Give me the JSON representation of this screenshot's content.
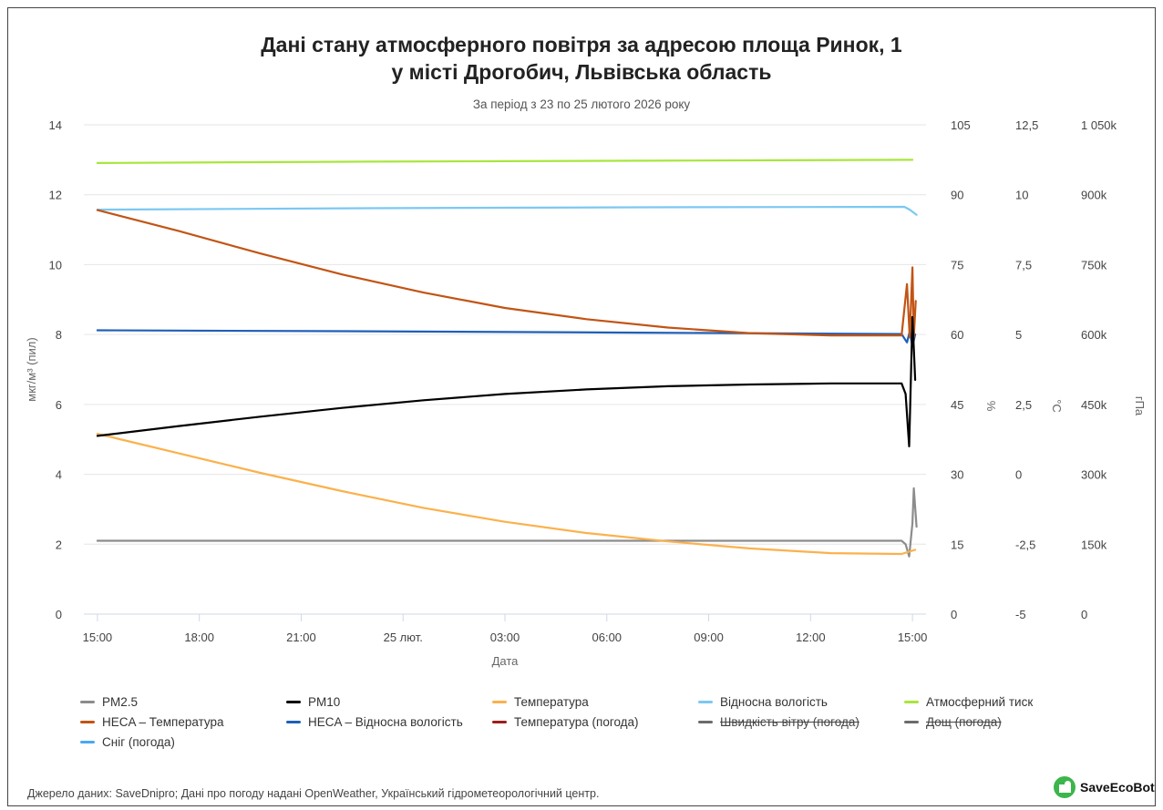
{
  "title_line1": "Дані стану атмосферного повітря за адресою площа Ринок, 1",
  "title_line2": "у місті Дрогобич, Львівська область",
  "subtitle": "За період з 23 по 25 лютого 2026 року",
  "source_text": "Джерело даних: SaveDnipro; Дані про погоду надані OpenWeather, Український гідрометеорологічний центр.",
  "brand": {
    "name": "SaveEcoBot",
    "logo_icon": "saveecobot-logo-icon",
    "color": "#3cb54a"
  },
  "chart_data": {
    "type": "line",
    "xlabel": "Дата",
    "x_tick_labels": [
      "15:00",
      "18:00",
      "21:00",
      "25 лют.",
      "03:00",
      "06:00",
      "09:00",
      "12:00",
      "15:00"
    ],
    "x_range_hours": [
      -0.5,
      30.5
    ],
    "grid": true,
    "legend_placement": "bottom",
    "axes": {
      "pm": {
        "label": "мкг/м³ (пил)",
        "ticks": [
          "0",
          "2",
          "4",
          "6",
          "8",
          "10",
          "12",
          "14"
        ],
        "range": [
          0,
          14
        ]
      },
      "humidity": {
        "label": "%",
        "ticks": [
          "0",
          "15",
          "30",
          "45",
          "60",
          "75",
          "90",
          "105"
        ],
        "range": [
          0,
          105
        ]
      },
      "temperature": {
        "label": "°C",
        "ticks": [
          "-5",
          "-2,5",
          "0",
          "2,5",
          "5",
          "7,5",
          "10",
          "12,5"
        ],
        "range": [
          -5,
          12.5
        ]
      },
      "pressure": {
        "label": "гПа",
        "ticks": [
          "0",
          "150k",
          "300k",
          "450k",
          "600k",
          "750k",
          "900k",
          "1 050k"
        ],
        "range": [
          0,
          1050000
        ]
      }
    },
    "series": [
      {
        "name": "PM2.5",
        "axis": "pm",
        "color": "#8c8c8c",
        "visible": true,
        "points": [
          [
            0,
            2.1
          ],
          [
            15,
            2.1
          ],
          [
            29.6,
            2.1
          ],
          [
            29.75,
            2.0
          ],
          [
            29.88,
            1.65
          ],
          [
            30.0,
            2.6
          ],
          [
            30.05,
            3.6
          ],
          [
            30.15,
            2.5
          ]
        ]
      },
      {
        "name": "PM10",
        "axis": "pm",
        "color": "#000000",
        "visible": true,
        "points": [
          [
            0,
            5.1
          ],
          [
            3,
            5.38
          ],
          [
            6,
            5.65
          ],
          [
            9,
            5.9
          ],
          [
            12,
            6.12
          ],
          [
            15,
            6.3
          ],
          [
            18,
            6.43
          ],
          [
            21,
            6.52
          ],
          [
            24,
            6.57
          ],
          [
            27,
            6.6
          ],
          [
            29.6,
            6.6
          ],
          [
            29.75,
            6.3
          ],
          [
            29.88,
            4.8
          ],
          [
            30.0,
            8.5
          ],
          [
            30.1,
            6.7
          ]
        ]
      },
      {
        "name": "Температура",
        "axis": "temperature",
        "color": "#fbb14c",
        "visible": true,
        "points": [
          [
            0,
            1.45
          ],
          [
            3,
            0.75
          ],
          [
            6,
            0.05
          ],
          [
            9,
            -0.6
          ],
          [
            12,
            -1.2
          ],
          [
            15,
            -1.7
          ],
          [
            18,
            -2.1
          ],
          [
            21,
            -2.4
          ],
          [
            24,
            -2.65
          ],
          [
            27,
            -2.82
          ],
          [
            29.6,
            -2.85
          ],
          [
            30.1,
            -2.7
          ]
        ]
      },
      {
        "name": "Відносна вологість",
        "axis": "humidity",
        "color": "#7cc8f2",
        "visible": true,
        "points": [
          [
            0,
            86.8
          ],
          [
            10,
            87.1
          ],
          [
            20,
            87.3
          ],
          [
            29.7,
            87.4
          ],
          [
            29.9,
            86.8
          ],
          [
            30.15,
            85.7
          ]
        ]
      },
      {
        "name": "Атмосферний тиск",
        "axis": "pressure",
        "color": "#a8e63c",
        "visible": true,
        "points": [
          [
            0,
            968000
          ],
          [
            10,
            971000
          ],
          [
            20,
            973000
          ],
          [
            30,
            975000
          ]
        ]
      },
      {
        "name": "HECA – Температура",
        "axis": "temperature",
        "color": "#c25414",
        "visible": true,
        "points": [
          [
            0,
            9.45
          ],
          [
            3,
            8.7
          ],
          [
            6,
            7.9
          ],
          [
            9,
            7.15
          ],
          [
            12,
            6.5
          ],
          [
            15,
            5.95
          ],
          [
            18,
            5.55
          ],
          [
            21,
            5.25
          ],
          [
            24,
            5.05
          ],
          [
            27,
            4.97
          ],
          [
            29.6,
            4.97
          ],
          [
            29.8,
            6.8
          ],
          [
            29.9,
            4.9
          ],
          [
            30.0,
            7.4
          ],
          [
            30.05,
            4.9
          ],
          [
            30.12,
            6.2
          ]
        ]
      },
      {
        "name": "HECA – Відносна вологість",
        "axis": "humidity",
        "color": "#1f5fb8",
        "visible": true,
        "points": [
          [
            0,
            60.9
          ],
          [
            10,
            60.7
          ],
          [
            20,
            60.4
          ],
          [
            29.6,
            60.1
          ],
          [
            29.8,
            58.3
          ],
          [
            29.9,
            60.6
          ],
          [
            30.0,
            57.5
          ],
          [
            30.1,
            60.0
          ]
        ]
      },
      {
        "name": "Температура (погода)",
        "axis": "temperature",
        "color": "#9c1d1d",
        "visible": true,
        "points": []
      },
      {
        "name": "Швидкість вітру (погода)",
        "axis": "pm",
        "color": "#6b6b6b",
        "visible": false,
        "points": []
      },
      {
        "name": "Дощ (погода)",
        "axis": "pm",
        "color": "#6b6b6b",
        "visible": false,
        "points": []
      },
      {
        "name": "Сніг (погода)",
        "axis": "pm",
        "color": "#4aa8f0",
        "visible": true,
        "points": []
      }
    ]
  }
}
